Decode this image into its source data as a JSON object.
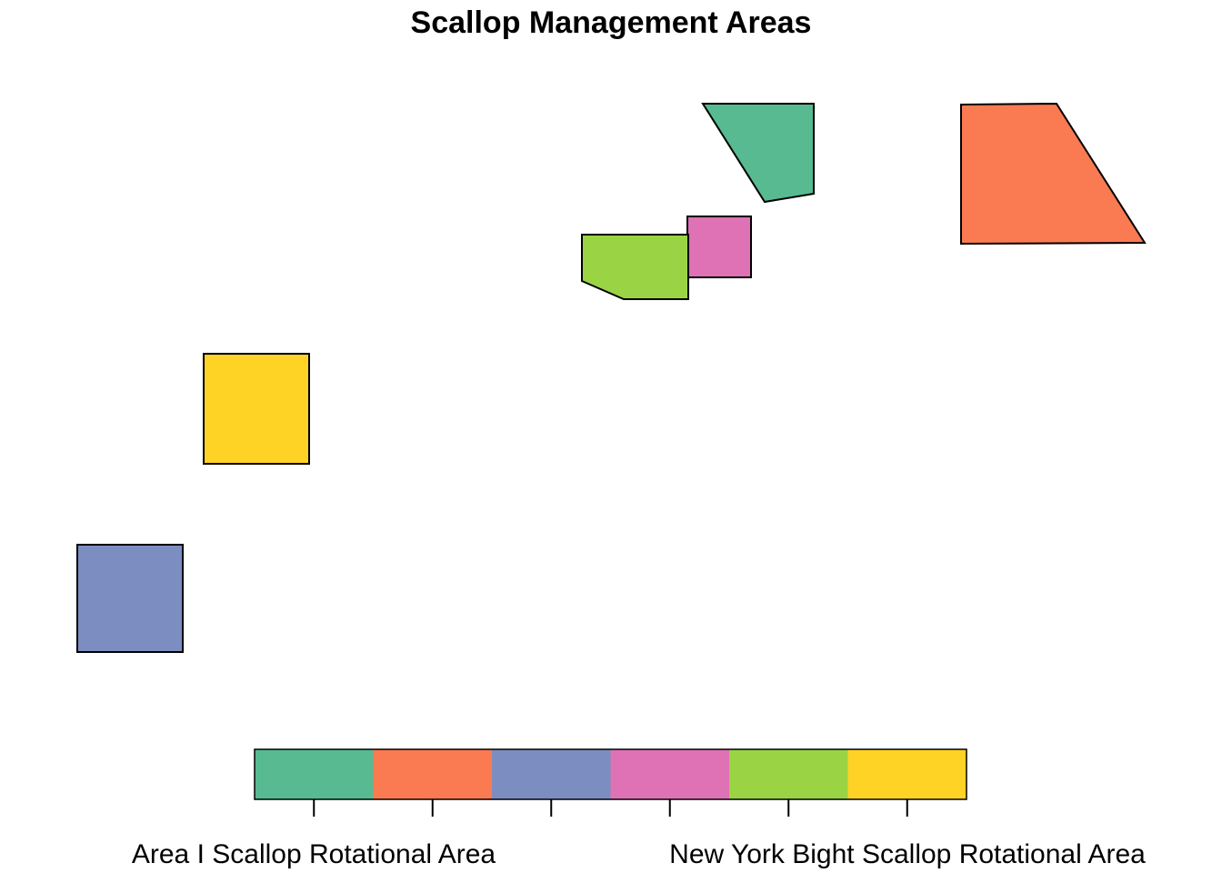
{
  "title": "Scallop Management Areas",
  "areas": [
    {
      "name": "Area I Scallop Rotational Area",
      "color": "#57BA91"
    },
    {
      "name": "",
      "color": "#FA7A52"
    },
    {
      "name": "",
      "color": "#7C8EC1"
    },
    {
      "name": "",
      "color": "#DE72B4"
    },
    {
      "name": "",
      "color": "#9AD444"
    },
    {
      "name": "New York Bight Scallop Rotational Area",
      "color": "#FED325"
    }
  ],
  "legend": {
    "labels": [
      "Area I Scallop Rotational Area",
      "New York Bight Scallop Rotational Area"
    ]
  }
}
